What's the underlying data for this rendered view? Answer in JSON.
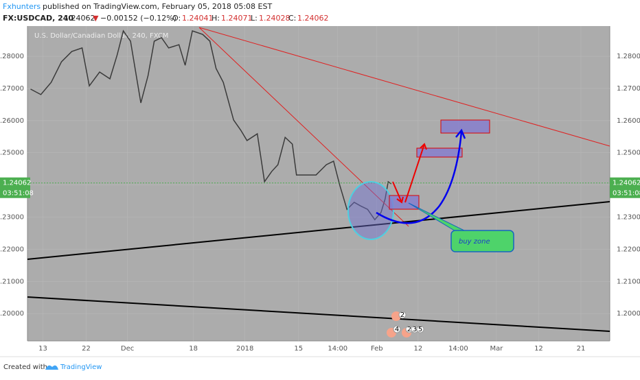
{
  "header": {
    "author": "Fxhunters",
    "published": "published on TradingView.com, February 05, 2018 05:08 EST",
    "symbol": "FX:USDCAD, 240",
    "last": "1.24062",
    "arrow": "▼",
    "change": "−0.00152 (−0.12%)",
    "o_label": "O:",
    "o": "1.24041",
    "h_label": "H:",
    "h": "1.24071",
    "l_label": "L:",
    "l": "1.24028",
    "c_label": "C:",
    "c": "1.24062"
  },
  "chart_data": {
    "type": "line",
    "title": "U.S. Dollar/Canadian Dollar, 240, FXCM",
    "color": "#3a3a3a",
    "x": [
      3,
      13,
      23,
      33,
      43,
      53,
      60,
      70,
      80,
      87,
      93,
      100,
      110,
      117,
      123,
      130,
      137,
      147,
      153,
      160,
      170,
      177,
      183,
      190,
      200,
      207,
      213,
      223,
      230,
      237,
      243,
      250,
      257,
      261,
      270,
      280,
      290,
      297,
      303,
      310,
      317,
      323,
      330,
      337,
      343,
      347,
      350,
      353
    ],
    "values": [
      1.2698,
      1.2681,
      1.2719,
      1.2783,
      1.2815,
      1.2826,
      1.2708,
      1.2751,
      1.273,
      1.2804,
      1.2879,
      1.2847,
      1.2655,
      1.274,
      1.2847,
      1.2858,
      1.2826,
      1.2836,
      1.2772,
      1.2879,
      1.2868,
      1.2847,
      1.2762,
      1.2719,
      1.2602,
      1.257,
      1.2538,
      1.2559,
      1.241,
      1.2442,
      1.2463,
      1.2548,
      1.2527,
      1.2431,
      1.2431,
      1.2431,
      1.2463,
      1.2474,
      1.2399,
      1.2324,
      1.2346,
      1.2335,
      1.2324,
      1.2292,
      1.2314,
      1.2356,
      1.241,
      1.2403
    ],
    "xlim": [
      0,
      565
    ],
    "ylim": [
      1.1915,
      1.2894
    ],
    "xticks": [
      {
        "value": 15,
        "label": "13"
      },
      {
        "value": 57,
        "label": "22"
      },
      {
        "value": 97,
        "label": "Dec"
      },
      {
        "value": 161,
        "label": "18"
      },
      {
        "value": 211,
        "label": "2018"
      },
      {
        "value": 263,
        "label": "15"
      },
      {
        "value": 301,
        "label": "14:00"
      },
      {
        "value": 339,
        "label": "Feb"
      },
      {
        "value": 379,
        "label": "12"
      },
      {
        "value": 418,
        "label": "14:00"
      },
      {
        "value": 455,
        "label": "Mar"
      },
      {
        "value": 496,
        "label": "12"
      },
      {
        "value": 537,
        "label": "21"
      }
    ],
    "yticks": [
      {
        "value": 1.2,
        "label": "1.20000"
      },
      {
        "value": 1.21,
        "label": "1.21000"
      },
      {
        "value": 1.22,
        "label": "1.22000"
      },
      {
        "value": 1.23,
        "label": "1.23000"
      },
      {
        "value": 1.24,
        "label": "1.24000"
      },
      {
        "value": 1.25,
        "label": "1.25000"
      },
      {
        "value": 1.26,
        "label": "1.26000"
      },
      {
        "value": 1.27,
        "label": "1.27000"
      },
      {
        "value": 1.28,
        "label": "1.28000"
      }
    ],
    "current_price": {
      "value": 1.24062,
      "label": "1.24062"
    },
    "countdown": "03:51:08",
    "annotation": "buy zone",
    "events": [
      "2",
      "4",
      "2",
      "3",
      "5"
    ]
  },
  "footer": {
    "created": "Created with",
    "brand": "TradingView"
  }
}
